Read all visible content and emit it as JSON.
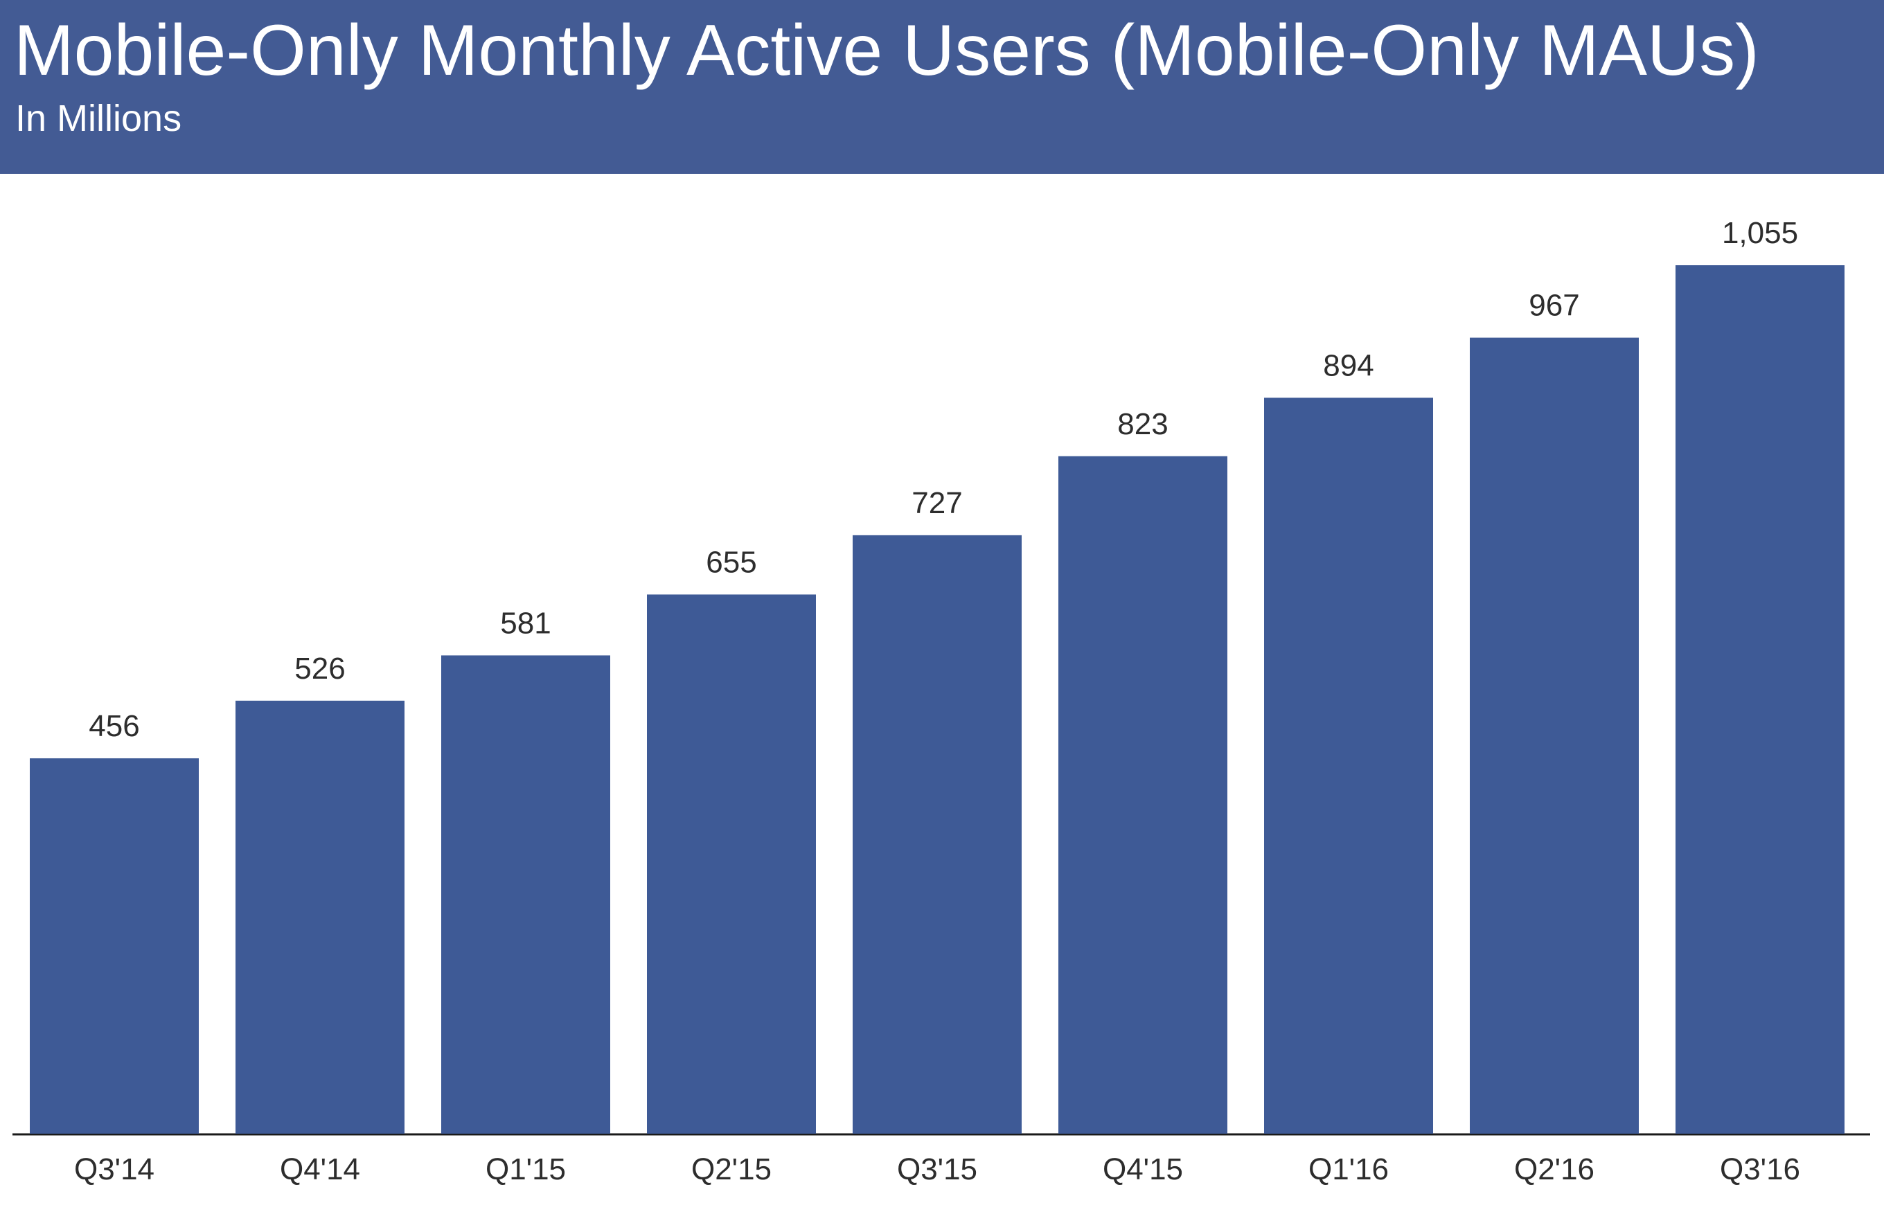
{
  "header": {
    "title": "Mobile-Only Monthly Active Users (Mobile-Only MAUs)",
    "subtitle": "In Millions"
  },
  "colors": {
    "header_background": "#435b94",
    "bar": "#3e5a96",
    "text": "#2d2d2d",
    "axis": "#1a1a1a"
  },
  "chart_data": {
    "type": "bar",
    "title": "Mobile-Only Monthly Active Users (Mobile-Only MAUs)",
    "subtitle": "In Millions",
    "categories": [
      "Q3'14",
      "Q4'14",
      "Q1'15",
      "Q2'15",
      "Q3'15",
      "Q4'15",
      "Q1'16",
      "Q2'16",
      "Q3'16"
    ],
    "values": [
      456,
      526,
      581,
      655,
      727,
      823,
      894,
      967,
      1055
    ],
    "value_labels": [
      "456",
      "526",
      "581",
      "655",
      "727",
      "823",
      "894",
      "967",
      "1,055"
    ],
    "xlabel": "",
    "ylabel": "",
    "ylim": [
      0,
      1055
    ],
    "grid": false,
    "legend": "none"
  }
}
